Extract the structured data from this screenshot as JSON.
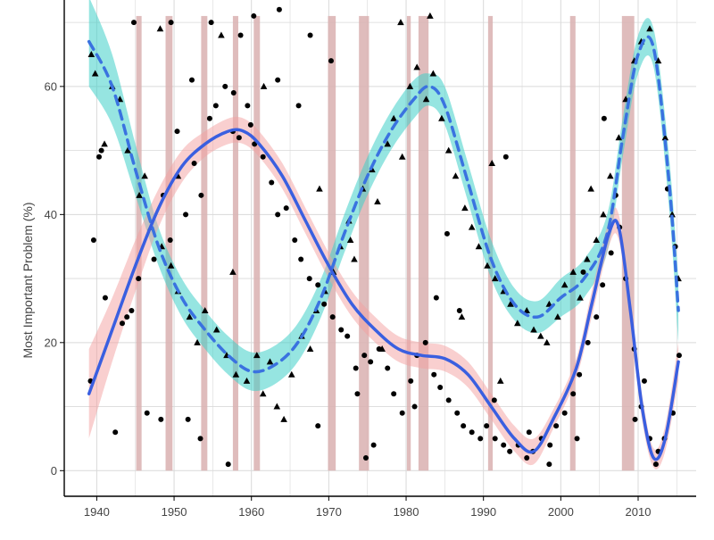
{
  "chart_data": {
    "type": "scatter",
    "title": "",
    "xlabel": "",
    "ylabel": "Most Important Problem (%)",
    "xlim": [
      1935.8,
      2017.5
    ],
    "ylim": [
      -4,
      73.5
    ],
    "xticks": [
      1940,
      1950,
      1960,
      1970,
      1980,
      1990,
      2000,
      2010
    ],
    "yticks": [
      0,
      20,
      40,
      60
    ],
    "grid": true,
    "legend": "none",
    "colors": {
      "recession_band": "#d9b0b0",
      "triangle_ribbon": "#40d0c8",
      "triangle_line": "#3a72e0",
      "circle_ribbon": "#f4a0a0",
      "circle_line": "#3a5fe0",
      "points": "#000000",
      "grid": "#d9d9d9",
      "axis": "#000000"
    },
    "recession_bands": [
      [
        1945.1,
        1945.8
      ],
      [
        1948.9,
        1949.8
      ],
      [
        1953.5,
        1954.3
      ],
      [
        1957.6,
        1958.3
      ],
      [
        1960.3,
        1961.1
      ],
      [
        1969.9,
        1970.9
      ],
      [
        1973.9,
        1975.2
      ],
      [
        1980.1,
        1980.6
      ],
      [
        1981.6,
        1982.9
      ],
      [
        1990.6,
        1991.2
      ],
      [
        2001.2,
        2001.9
      ],
      [
        2007.9,
        2009.5
      ]
    ],
    "series": [
      {
        "name": "",
        "marker": "triangle",
        "line_style": "dashed",
        "smooth": [
          [
            1939,
            67,
            60,
            74
          ],
          [
            1942,
            60,
            54,
            65
          ],
          [
            1945,
            47,
            43,
            51
          ],
          [
            1948,
            35,
            32,
            38
          ],
          [
            1951,
            27,
            24,
            30
          ],
          [
            1954,
            22,
            19,
            25
          ],
          [
            1957,
            18,
            15,
            21
          ],
          [
            1960,
            15.5,
            12.5,
            18.5
          ],
          [
            1963,
            16.5,
            13.5,
            19.5
          ],
          [
            1966,
            20,
            17,
            23
          ],
          [
            1969,
            27,
            24,
            30
          ],
          [
            1972,
            37,
            34,
            40
          ],
          [
            1975,
            46,
            43,
            49
          ],
          [
            1978,
            53,
            50,
            56
          ],
          [
            1981,
            58,
            55,
            61
          ],
          [
            1983,
            60,
            57,
            62
          ],
          [
            1985,
            57,
            54,
            60
          ],
          [
            1988,
            45,
            42,
            48
          ],
          [
            1991,
            33,
            30,
            36
          ],
          [
            1994,
            26,
            23.5,
            28.5
          ],
          [
            1997,
            24,
            21.5,
            26.5
          ],
          [
            2000,
            27,
            24,
            30
          ],
          [
            2003,
            30,
            27,
            33
          ],
          [
            2006,
            37,
            34,
            40
          ],
          [
            2008,
            52,
            49,
            55
          ],
          [
            2010,
            65,
            62,
            68
          ],
          [
            2012,
            66,
            63,
            69
          ],
          [
            2014,
            45,
            41,
            49
          ],
          [
            2015.2,
            25,
            20,
            30
          ]
        ],
        "points": [
          [
            1939.3,
            65
          ],
          [
            1939.8,
            62
          ],
          [
            1941,
            51
          ],
          [
            1942,
            60
          ],
          [
            1943,
            58
          ],
          [
            1944,
            50
          ],
          [
            1945.5,
            43
          ],
          [
            1946.2,
            46
          ],
          [
            1947,
            38
          ],
          [
            1948.4,
            35
          ],
          [
            1949.6,
            32
          ],
          [
            1950.5,
            28
          ],
          [
            1952,
            24
          ],
          [
            1953,
            20
          ],
          [
            1954,
            25
          ],
          [
            1955.5,
            22
          ],
          [
            1956.8,
            18
          ],
          [
            1958,
            15
          ],
          [
            1959.4,
            14
          ],
          [
            1960.7,
            18
          ],
          [
            1961.5,
            12
          ],
          [
            1962.4,
            17
          ],
          [
            1963.3,
            10
          ],
          [
            1964.2,
            8
          ],
          [
            1965.2,
            15
          ],
          [
            1966.5,
            21
          ],
          [
            1967.6,
            19
          ],
          [
            1968.4,
            25
          ],
          [
            1969.5,
            28
          ],
          [
            1970.6,
            31
          ],
          [
            1971.5,
            35
          ],
          [
            1972.6,
            39
          ],
          [
            1973.3,
            33
          ],
          [
            1974.4,
            44
          ],
          [
            1975.6,
            47
          ],
          [
            1976.3,
            42
          ],
          [
            1977.6,
            51
          ],
          [
            1978.4,
            55
          ],
          [
            1979.5,
            49
          ],
          [
            1980.5,
            60
          ],
          [
            1981.4,
            63
          ],
          [
            1982.6,
            58
          ],
          [
            1983.5,
            62
          ],
          [
            1984.6,
            55
          ],
          [
            1985.5,
            50
          ],
          [
            1986.4,
            46
          ],
          [
            1987.6,
            41
          ],
          [
            1988.5,
            38
          ],
          [
            1989.4,
            35
          ],
          [
            1990.5,
            32
          ],
          [
            1991.5,
            30
          ],
          [
            1992.6,
            28
          ],
          [
            1993.5,
            26
          ],
          [
            1994.4,
            23
          ],
          [
            1995.6,
            25
          ],
          [
            1996.5,
            22
          ],
          [
            1997.4,
            21
          ],
          [
            1998.5,
            26
          ],
          [
            1999.6,
            24
          ],
          [
            2000.5,
            29
          ],
          [
            2001.6,
            31
          ],
          [
            2002.5,
            27
          ],
          [
            2003.4,
            33
          ],
          [
            2004.6,
            36
          ],
          [
            2005.5,
            40
          ],
          [
            2006.4,
            46
          ],
          [
            2007.5,
            52
          ],
          [
            2008.4,
            58
          ],
          [
            2009.5,
            64
          ],
          [
            2010.4,
            67
          ],
          [
            2011.5,
            69
          ],
          [
            2012.6,
            64
          ],
          [
            2013.5,
            52
          ],
          [
            2014.4,
            40
          ],
          [
            2015.2,
            30
          ],
          [
            1976.9,
            19
          ],
          [
            1968.8,
            44
          ],
          [
            1972.8,
            36
          ],
          [
            1987.2,
            24
          ],
          [
            1992.2,
            14
          ],
          [
            1998.2,
            20
          ],
          [
            2003.9,
            44
          ],
          [
            1950.5,
            46
          ],
          [
            1948.2,
            69
          ],
          [
            1956.1,
            68
          ],
          [
            1961.6,
            60
          ],
          [
            1979.3,
            70
          ],
          [
            1983.1,
            71
          ],
          [
            1991.1,
            48
          ],
          [
            1957.6,
            31
          ]
        ]
      },
      {
        "name": "",
        "marker": "circle",
        "line_style": "solid",
        "smooth": [
          [
            1939,
            12,
            5,
            19
          ],
          [
            1942,
            22,
            17,
            27
          ],
          [
            1945,
            32,
            28,
            36
          ],
          [
            1948,
            41,
            38,
            44
          ],
          [
            1951,
            47.5,
            45,
            50
          ],
          [
            1954,
            51,
            49,
            53
          ],
          [
            1957,
            53,
            51,
            55
          ],
          [
            1959,
            53,
            51,
            55
          ],
          [
            1961,
            51,
            49,
            53
          ],
          [
            1964,
            46,
            44,
            48
          ],
          [
            1967,
            39,
            37,
            41
          ],
          [
            1970,
            32,
            30,
            34
          ],
          [
            1973,
            26,
            24,
            28
          ],
          [
            1976,
            22,
            20,
            24
          ],
          [
            1979,
            19,
            17,
            21
          ],
          [
            1982,
            18,
            16,
            20
          ],
          [
            1985,
            17.5,
            15.5,
            19.5
          ],
          [
            1988,
            15,
            13,
            17
          ],
          [
            1991,
            10,
            8,
            12
          ],
          [
            1994,
            5,
            3,
            7
          ],
          [
            1996.5,
            3,
            1,
            5
          ],
          [
            1999,
            8,
            6.5,
            9.5
          ],
          [
            2002,
            16,
            14.5,
            17.5
          ],
          [
            2004,
            26,
            24,
            28
          ],
          [
            2006.2,
            37,
            35,
            39
          ],
          [
            2007.5,
            38,
            36,
            40
          ],
          [
            2009,
            25,
            23,
            27
          ],
          [
            2010.5,
            10,
            8,
            12
          ],
          [
            2012,
            2,
            0.5,
            3.5
          ],
          [
            2013.5,
            5,
            3,
            7
          ],
          [
            2015.2,
            17,
            14,
            20
          ]
        ],
        "points": [
          [
            1939.2,
            14
          ],
          [
            1939.6,
            36
          ],
          [
            1940.3,
            49
          ],
          [
            1941.1,
            27
          ],
          [
            1942.4,
            6
          ],
          [
            1943.3,
            23
          ],
          [
            1944.5,
            25
          ],
          [
            1945.4,
            30
          ],
          [
            1946.5,
            9
          ],
          [
            1947.4,
            33
          ],
          [
            1948.6,
            43
          ],
          [
            1949.5,
            36
          ],
          [
            1950.4,
            53
          ],
          [
            1951.5,
            40
          ],
          [
            1952.6,
            48
          ],
          [
            1953.5,
            43
          ],
          [
            1954.6,
            55
          ],
          [
            1955.4,
            57
          ],
          [
            1956.6,
            60
          ],
          [
            1957.6,
            53
          ],
          [
            1958.4,
            52
          ],
          [
            1959.5,
            57
          ],
          [
            1960.4,
            51
          ],
          [
            1961.5,
            49
          ],
          [
            1962.6,
            45
          ],
          [
            1963.4,
            40
          ],
          [
            1964.5,
            41
          ],
          [
            1965.6,
            36
          ],
          [
            1966.4,
            33
          ],
          [
            1967.5,
            30
          ],
          [
            1968.6,
            29
          ],
          [
            1969.4,
            26
          ],
          [
            1970.5,
            24
          ],
          [
            1971.6,
            22
          ],
          [
            1972.4,
            21
          ],
          [
            1973.5,
            16
          ],
          [
            1974.6,
            18
          ],
          [
            1975.4,
            17
          ],
          [
            1976.5,
            19
          ],
          [
            1977.6,
            16
          ],
          [
            1978.4,
            12
          ],
          [
            1979.5,
            9
          ],
          [
            1980.6,
            14
          ],
          [
            1981.4,
            18
          ],
          [
            1982.5,
            20
          ],
          [
            1983.6,
            15
          ],
          [
            1984.4,
            13
          ],
          [
            1985.5,
            11
          ],
          [
            1986.6,
            9
          ],
          [
            1987.4,
            7
          ],
          [
            1988.5,
            6
          ],
          [
            1989.6,
            5
          ],
          [
            1990.4,
            7
          ],
          [
            1991.5,
            5
          ],
          [
            1992.6,
            4
          ],
          [
            1993.4,
            3
          ],
          [
            1994.5,
            4
          ],
          [
            1995.6,
            2
          ],
          [
            1996.4,
            3
          ],
          [
            1997.5,
            5
          ],
          [
            1998.6,
            4
          ],
          [
            1999.4,
            7
          ],
          [
            2000.5,
            9
          ],
          [
            2001.6,
            12
          ],
          [
            2002.4,
            15
          ],
          [
            2003.5,
            20
          ],
          [
            2004.6,
            24
          ],
          [
            2005.4,
            29
          ],
          [
            2006.5,
            34
          ],
          [
            2007.6,
            38
          ],
          [
            2008.4,
            30
          ],
          [
            2009.5,
            19
          ],
          [
            2010.4,
            10
          ],
          [
            2011.5,
            5
          ],
          [
            2012.6,
            3
          ],
          [
            2013.4,
            5
          ],
          [
            2014.5,
            9
          ],
          [
            2015.3,
            18
          ],
          [
            1944.8,
            70
          ],
          [
            1949.6,
            70
          ],
          [
            1954.8,
            70
          ],
          [
            1960.3,
            71
          ],
          [
            1963.6,
            72
          ],
          [
            1967.6,
            68
          ],
          [
            1970.3,
            64
          ],
          [
            1952.3,
            61
          ],
          [
            1957.7,
            59
          ],
          [
            1963.4,
            61
          ],
          [
            1966.1,
            57
          ],
          [
            1968.6,
            7
          ],
          [
            1974.8,
            2
          ],
          [
            1957.0,
            1
          ],
          [
            1985.3,
            37
          ],
          [
            1973.7,
            12
          ],
          [
            1991.4,
            11
          ],
          [
            1995.9,
            6
          ],
          [
            1998.5,
            1
          ],
          [
            2002.9,
            31
          ],
          [
            2005.6,
            55
          ],
          [
            2010.8,
            14
          ],
          [
            2012.3,
            1
          ],
          [
            1940.6,
            50
          ],
          [
            1943.9,
            24
          ],
          [
            1948.3,
            8
          ],
          [
            1951.8,
            8
          ],
          [
            1953.4,
            5
          ],
          [
            1958.6,
            68
          ],
          [
            1959.9,
            54
          ],
          [
            1975.8,
            4
          ],
          [
            1981.1,
            10
          ],
          [
            1983.9,
            27
          ],
          [
            1986.9,
            25
          ],
          [
            1992.9,
            49
          ],
          [
            2002.1,
            5
          ],
          [
            2007.1,
            43
          ],
          [
            2009.6,
            8
          ],
          [
            2013.8,
            44
          ],
          [
            2014.8,
            35
          ]
        ]
      }
    ]
  }
}
